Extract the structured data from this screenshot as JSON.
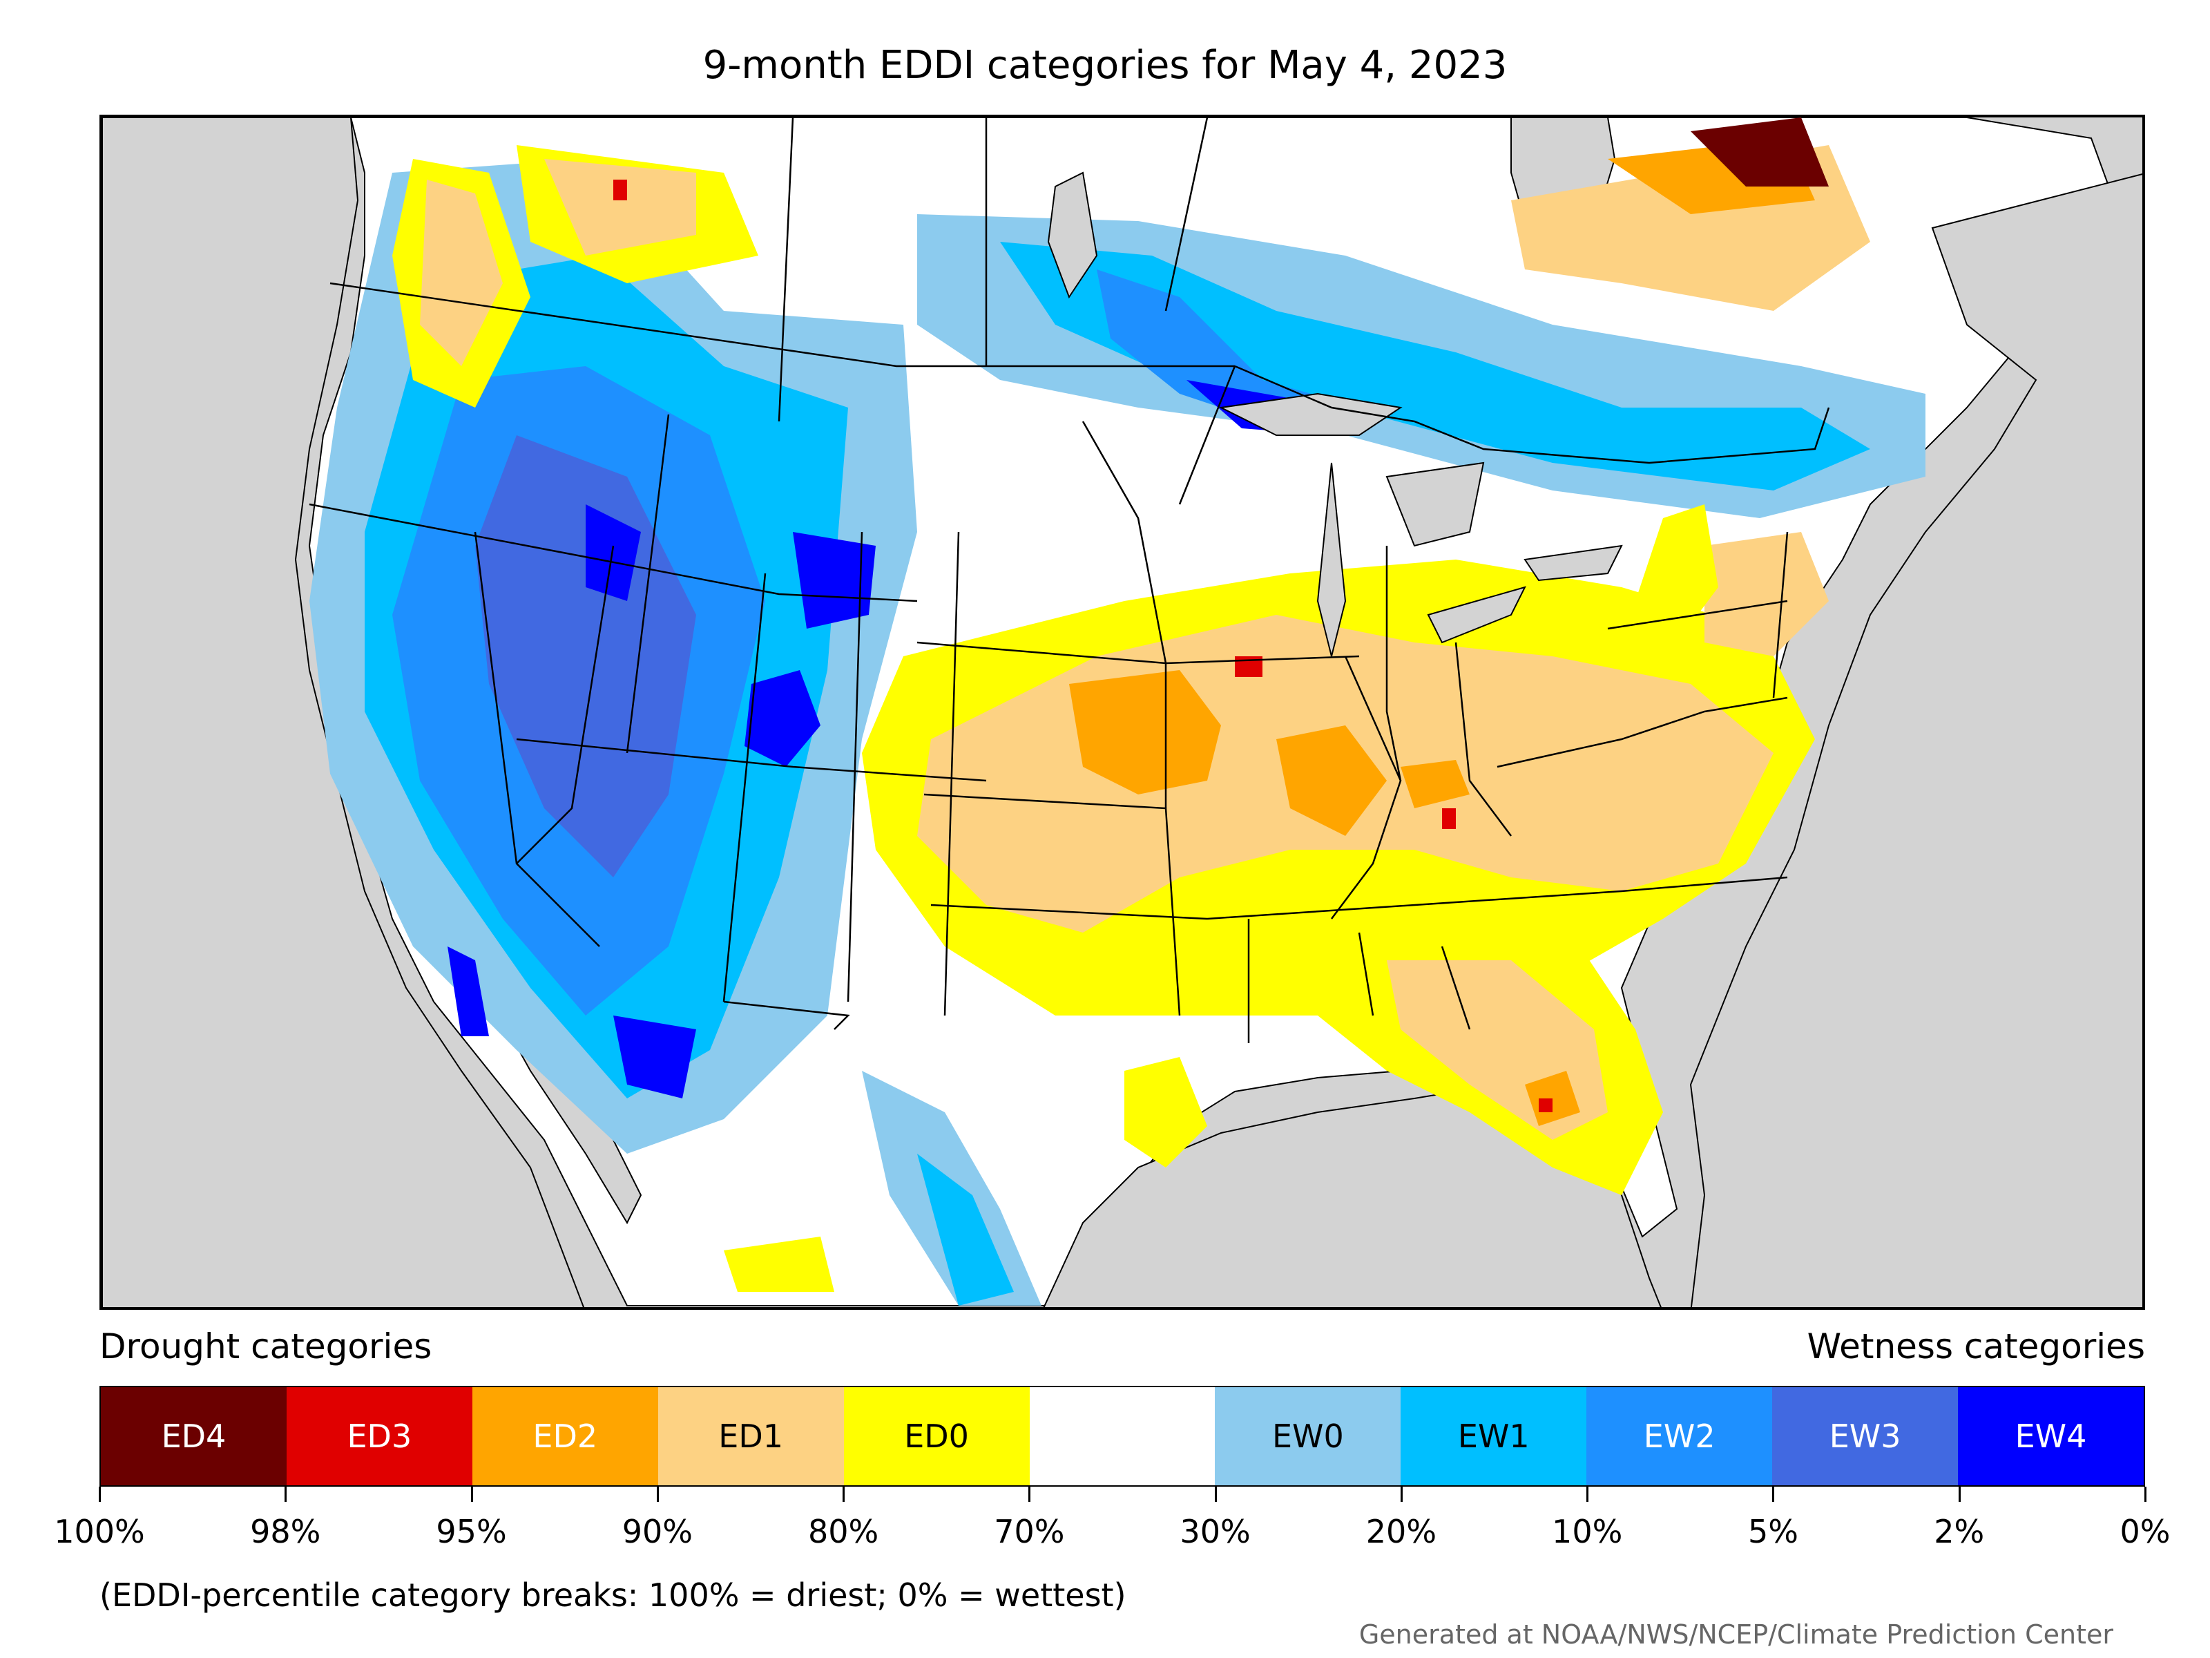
{
  "title": "9-month EDDI categories for May 4, 2023",
  "legend": {
    "left_heading": "Drought categories",
    "right_heading": "Wetness categories",
    "categories": [
      {
        "label": "ED4",
        "color": "#6b0000",
        "text_color": "#ffffff"
      },
      {
        "label": "ED3",
        "color": "#e00000",
        "text_color": "#ffffff"
      },
      {
        "label": "ED2",
        "color": "#ffa500",
        "text_color": "#ffffff"
      },
      {
        "label": "ED1",
        "color": "#fdd283",
        "text_color": "#000000"
      },
      {
        "label": "ED0",
        "color": "#ffff00",
        "text_color": "#000000"
      },
      {
        "label": "",
        "color": "#ffffff",
        "text_color": "#000000"
      },
      {
        "label": "EW0",
        "color": "#8ccbee",
        "text_color": "#000000"
      },
      {
        "label": "EW1",
        "color": "#00bfff",
        "text_color": "#000000"
      },
      {
        "label": "EW2",
        "color": "#1e90ff",
        "text_color": "#ffffff"
      },
      {
        "label": "EW3",
        "color": "#4169e1",
        "text_color": "#ffffff"
      },
      {
        "label": "EW4",
        "color": "#0000ff",
        "text_color": "#ffffff"
      }
    ],
    "tick_labels": [
      "100%",
      "98%",
      "95%",
      "90%",
      "80%",
      "70%",
      "30%",
      "20%",
      "10%",
      "5%",
      "2%",
      "0%"
    ]
  },
  "note": "(EDDI-percentile category breaks: 100% = driest; 0% = wettest)",
  "credit": "Generated at NOAA/NWS/NCEP/Climate Prediction Center",
  "colors": {
    "ocean": "#d3d3d3",
    "lakes": "#d3d3d3",
    "land_default": "#ffffff",
    "boundary": "#000000"
  }
}
